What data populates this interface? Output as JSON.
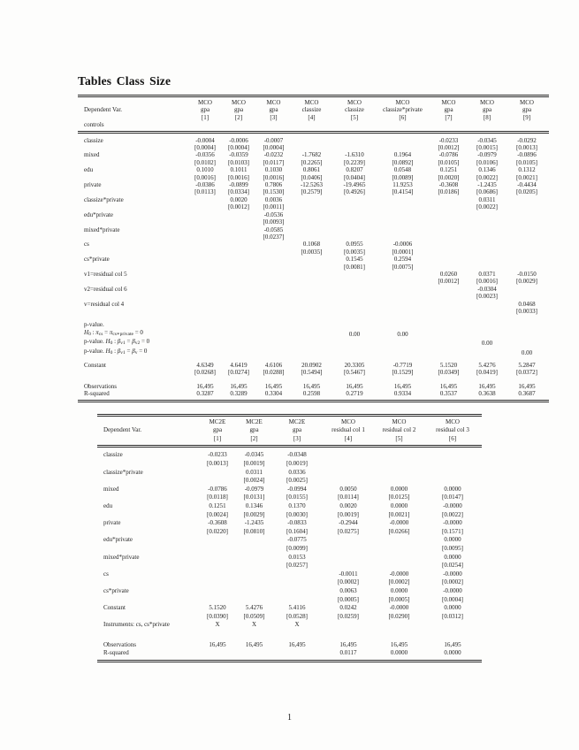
{
  "page": {
    "title": "Tables Class Size",
    "page_number": "1"
  },
  "table1": {
    "label_header": "Dependent Var.",
    "label_subheader": "controls",
    "columns": [
      {
        "method": "MCO",
        "dep": "gpa",
        "num": "[1]"
      },
      {
        "method": "MCO",
        "dep": "gpa",
        "num": "[2]"
      },
      {
        "method": "MCO",
        "dep": "gpa",
        "num": "[3]"
      },
      {
        "method": "MCO",
        "dep": "classize",
        "num": "[4]"
      },
      {
        "method": "MCO",
        "dep": "classize",
        "num": "[5]"
      },
      {
        "method": "MCO",
        "dep": "classize*private",
        "num": "[6]"
      },
      {
        "method": "MCO",
        "dep": "gpa",
        "num": "[7]"
      },
      {
        "method": "MCO",
        "dep": "gpa",
        "num": "[8]"
      },
      {
        "method": "MCO",
        "dep": "gpa",
        "num": "[9]"
      }
    ],
    "rows": [
      {
        "label": "classize",
        "est": [
          "-0.0004",
          "-0.0006",
          "-0.0007",
          "",
          "",
          "",
          "-0.0233",
          "-0.0345",
          "-0.0292"
        ],
        "se": [
          "[0.0004]",
          "[0.0004]",
          "[0.0004]",
          "",
          "",
          "",
          "[0.0012]",
          "[0.0015]",
          "[0.0013]"
        ]
      },
      {
        "label": "mixed",
        "est": [
          "-0.0356",
          "-0.0359",
          "-0.0232",
          "-1.7682",
          "-1.6310",
          "0.1964",
          "-0.0786",
          "-0.0979",
          "-0.0896"
        ],
        "se": [
          "[0.0102]",
          "[0.0103]",
          "[0.0117]",
          "[0.2265]",
          "[0.2239]",
          "[0.0892]",
          "[0.0105]",
          "[0.0106]",
          "[0.0105]"
        ]
      },
      {
        "label": "edu",
        "est": [
          "0.1010",
          "0.1011",
          "0.1030",
          "0.8061",
          "0.8207",
          "0.0548",
          "0.1251",
          "0.1346",
          "0.1312"
        ],
        "se": [
          "[0.0016]",
          "[0.0016]",
          "[0.0016]",
          "[0.0406]",
          "[0.0404]",
          "[0.0089]",
          "[0.0020]",
          "[0.0022]",
          "[0.0021]"
        ]
      },
      {
        "label": "private",
        "est": [
          "-0.0386",
          "-0.0899",
          "0.7806",
          "-12.5263",
          "-19.4965",
          "11.9253",
          "-0.3608",
          "-1.2435",
          "-0.4434"
        ],
        "se": [
          "[0.0113]",
          "[0.0334]",
          "[0.1530]",
          "[0.2579]",
          "[0.4926]",
          "[0.4154]",
          "[0.0186]",
          "[0.0686]",
          "[0.0205]"
        ]
      },
      {
        "label": "classize*private",
        "est": [
          "",
          "0.0020",
          "0.0036",
          "",
          "",
          "",
          "",
          "0.0311",
          ""
        ],
        "se": [
          "",
          "[0.0012]",
          "[0.0011]",
          "",
          "",
          "",
          "",
          "[0.0022]",
          ""
        ]
      },
      {
        "label": "edu*private",
        "est": [
          "",
          "",
          "-0.0536",
          "",
          "",
          "",
          "",
          "",
          ""
        ],
        "se": [
          "",
          "",
          "[0.0093]",
          "",
          "",
          "",
          "",
          "",
          ""
        ]
      },
      {
        "label": "mixed*private",
        "est": [
          "",
          "",
          "-0.0585",
          "",
          "",
          "",
          "",
          "",
          ""
        ],
        "se": [
          "",
          "",
          "[0.0237]",
          "",
          "",
          "",
          "",
          "",
          ""
        ]
      },
      {
        "label": "cs",
        "est": [
          "",
          "",
          "",
          "0.1068",
          "0.0955",
          "-0.0006",
          "",
          "",
          ""
        ],
        "se": [
          "",
          "",
          "",
          "[0.0035]",
          "[0.0035]",
          "[0.0001]",
          "",
          "",
          ""
        ]
      },
      {
        "label": "cs*private",
        "est": [
          "",
          "",
          "",
          "",
          "0.1545",
          "0.2594",
          "",
          "",
          ""
        ],
        "se": [
          "",
          "",
          "",
          "",
          "[0.0081]",
          "[0.0075]",
          "",
          "",
          ""
        ]
      },
      {
        "label": "v1=residual col 5",
        "est": [
          "",
          "",
          "",
          "",
          "",
          "",
          "0.0260",
          "0.0371",
          "-0.0150"
        ],
        "se": [
          "",
          "",
          "",
          "",
          "",
          "",
          "[0.0012]",
          "[0.0016]",
          "[0.0029]"
        ]
      },
      {
        "label": "v2=residual col 6",
        "est": [
          "",
          "",
          "",
          "",
          "",
          "",
          "",
          "-0.0304",
          ""
        ],
        "se": [
          "",
          "",
          "",
          "",
          "",
          "",
          "",
          "[0.0023]",
          ""
        ]
      },
      {
        "label": "v=residual col 4",
        "est": [
          "",
          "",
          "",
          "",
          "",
          "",
          "",
          "",
          "0.0468"
        ],
        "se": [
          "",
          "",
          "",
          "",
          "",
          "",
          "",
          "",
          "[0.0033]"
        ]
      }
    ],
    "pvalue_rows": [
      {
        "parts": [
          {
            "t": "p-value."
          }
        ],
        "cells": [
          "",
          "",
          "",
          "",
          "",
          "",
          "",
          "",
          ""
        ]
      },
      {
        "parts": [
          {
            "t": "H",
            "i": 1
          },
          {
            "t": "0",
            "s": 1
          },
          {
            "t": " : "
          },
          {
            "t": "π",
            "i": 1
          },
          {
            "t": "cs",
            "s": 1
          },
          {
            "t": " = "
          },
          {
            "t": "π",
            "i": 1
          },
          {
            "t": "cs∗private",
            "s": 1
          },
          {
            "t": " = 0"
          }
        ],
        "cells": [
          "",
          "",
          "",
          "",
          "0.00",
          "0.00",
          "",
          "",
          ""
        ]
      },
      {
        "parts": [
          {
            "t": "p-value. "
          },
          {
            "t": "H",
            "i": 1
          },
          {
            "t": "0",
            "s": 1
          },
          {
            "t": " : "
          },
          {
            "t": "β",
            "i": 1
          },
          {
            "t": "v1",
            "s": 1
          },
          {
            "t": " = "
          },
          {
            "t": "β",
            "i": 1
          },
          {
            "t": "v2",
            "s": 1
          },
          {
            "t": " = 0"
          }
        ],
        "cells": [
          "",
          "",
          "",
          "",
          "",
          "",
          "",
          "0.00",
          ""
        ]
      },
      {
        "parts": [
          {
            "t": "p-value. "
          },
          {
            "t": "H",
            "i": 1
          },
          {
            "t": "0",
            "s": 1
          },
          {
            "t": " : "
          },
          {
            "t": "β",
            "i": 1
          },
          {
            "t": "v1",
            "s": 1
          },
          {
            "t": " = "
          },
          {
            "t": "β",
            "i": 1
          },
          {
            "t": "v",
            "s": 1
          },
          {
            "t": " = 0"
          }
        ],
        "cells": [
          "",
          "",
          "",
          "",
          "",
          "",
          "",
          "",
          "0.00"
        ]
      }
    ],
    "constant_row": {
      "label": "Constant",
      "est": [
        "4.6349",
        "4.6419",
        "4.6106",
        "20.0902",
        "20.3305",
        "-0.7719",
        "5.1520",
        "5.4276",
        "5.2847"
      ],
      "se": [
        "[0.0268]",
        "[0.0274]",
        "[0.0288]",
        "[0.5494]",
        "[0.5467]",
        "[0.1529]",
        "[0.0349]",
        "[0.0419]",
        "[0.0372]"
      ]
    },
    "observations": {
      "label": "Observations",
      "values": [
        "16,495",
        "16,495",
        "16,495",
        "16,495",
        "16,495",
        "16,495",
        "16,495",
        "16,495",
        "16,495"
      ]
    },
    "r_squared": {
      "label": "R-squared",
      "values": [
        "0.3287",
        "0.3289",
        "0.3304",
        "0.2598",
        "0.2719",
        "0.9334",
        "0.3537",
        "0.3638",
        "0.3687"
      ]
    }
  },
  "table2": {
    "label_header": "Dependent Var.",
    "columns": [
      {
        "method": "MC2E",
        "dep": "gpa",
        "num": "[1]"
      },
      {
        "method": "MC2E",
        "dep": "gpa",
        "num": "[2]"
      },
      {
        "method": "MC2E",
        "dep": "gpa",
        "num": "[3]"
      },
      {
        "method": "MCO",
        "dep": "residual col 1",
        "num": "[4]"
      },
      {
        "method": "MCO",
        "dep": "residual col 2",
        "num": "[5]"
      },
      {
        "method": "MCO",
        "dep": "residual col 3",
        "num": "[6]"
      }
    ],
    "rows": [
      {
        "label": "classize",
        "est": [
          "-0.0233",
          "-0.0345",
          "-0.0348",
          "",
          "",
          ""
        ],
        "se": [
          "[0.0013]",
          "[0.0019]",
          "[0.0019]",
          "",
          "",
          ""
        ]
      },
      {
        "label": "classize*private",
        "est": [
          "",
          "0.0311",
          "0.0336",
          "",
          "",
          ""
        ],
        "se": [
          "",
          "[0.0024]",
          "[0.0025]",
          "",
          "",
          ""
        ]
      },
      {
        "label": "mixed",
        "est": [
          "-0.0786",
          "-0.0979",
          "-0.0994",
          "0.0050",
          "0.0000",
          "0.0000"
        ],
        "se": [
          "[0.0118]",
          "[0.0131]",
          "[0.0155]",
          "[0.0114]",
          "[0.0125]",
          "[0.0147]"
        ]
      },
      {
        "label": "edu",
        "est": [
          "0.1251",
          "0.1346",
          "0.1370",
          "0.0020",
          "0.0000",
          "-0.0000"
        ],
        "se": [
          "[0.0024]",
          "[0.0029]",
          "[0.0030]",
          "[0.0019]",
          "[0.0021]",
          "[0.0022]"
        ]
      },
      {
        "label": "private",
        "est": [
          "-0.3608",
          "-1.2435",
          "-0.0833",
          "-0.2944",
          "-0.0000",
          "-0.0000"
        ],
        "se": [
          "[0.0220]",
          "[0.0810]",
          "[0.1604]",
          "[0.0275]",
          "[0.0266]",
          "[0.1571]"
        ]
      },
      {
        "label": "edu*private",
        "est": [
          "",
          "",
          "-0.0775",
          "",
          "",
          "0.0000"
        ],
        "se": [
          "",
          "",
          "[0.0099]",
          "",
          "",
          "[0.0095]"
        ]
      },
      {
        "label": "mixed*private",
        "est": [
          "",
          "",
          "0.0153",
          "",
          "",
          "0.0000"
        ],
        "se": [
          "",
          "",
          "[0.0257]",
          "",
          "",
          "[0.0254]"
        ]
      },
      {
        "label": "cs",
        "est": [
          "",
          "",
          "",
          "-0.0011",
          "-0.0000",
          "-0.0000"
        ],
        "se": [
          "",
          "",
          "",
          "[0.0002]",
          "[0.0002]",
          "[0.0002]"
        ]
      },
      {
        "label": "cs*private",
        "est": [
          "",
          "",
          "",
          "0.0063",
          "0.0000",
          "-0.0000"
        ],
        "se": [
          "",
          "",
          "",
          "[0.0005]",
          "[0.0005]",
          "[0.0004]"
        ]
      },
      {
        "label": "Constant",
        "est": [
          "5.1520",
          "5.4276",
          "5.4116",
          "0.0242",
          "-0.0000",
          "0.0000"
        ],
        "se": [
          "[0.0390]",
          "[0.0509]",
          "[0.0528]",
          "[0.0259]",
          "[0.0290]",
          "[0.0312]"
        ]
      }
    ],
    "instruments_row": {
      "label": "Instruments: cs, cs*private",
      "values": [
        "X",
        "X",
        "X",
        "",
        "",
        ""
      ]
    },
    "observations": {
      "label": "Observations",
      "values": [
        "16,495",
        "16,495",
        "16,495",
        "16,495",
        "16,495",
        "16,495"
      ]
    },
    "r_squared": {
      "label": "R-squared",
      "values": [
        "",
        "",
        "",
        "0.0117",
        "0.0000",
        "0.0000"
      ]
    }
  }
}
